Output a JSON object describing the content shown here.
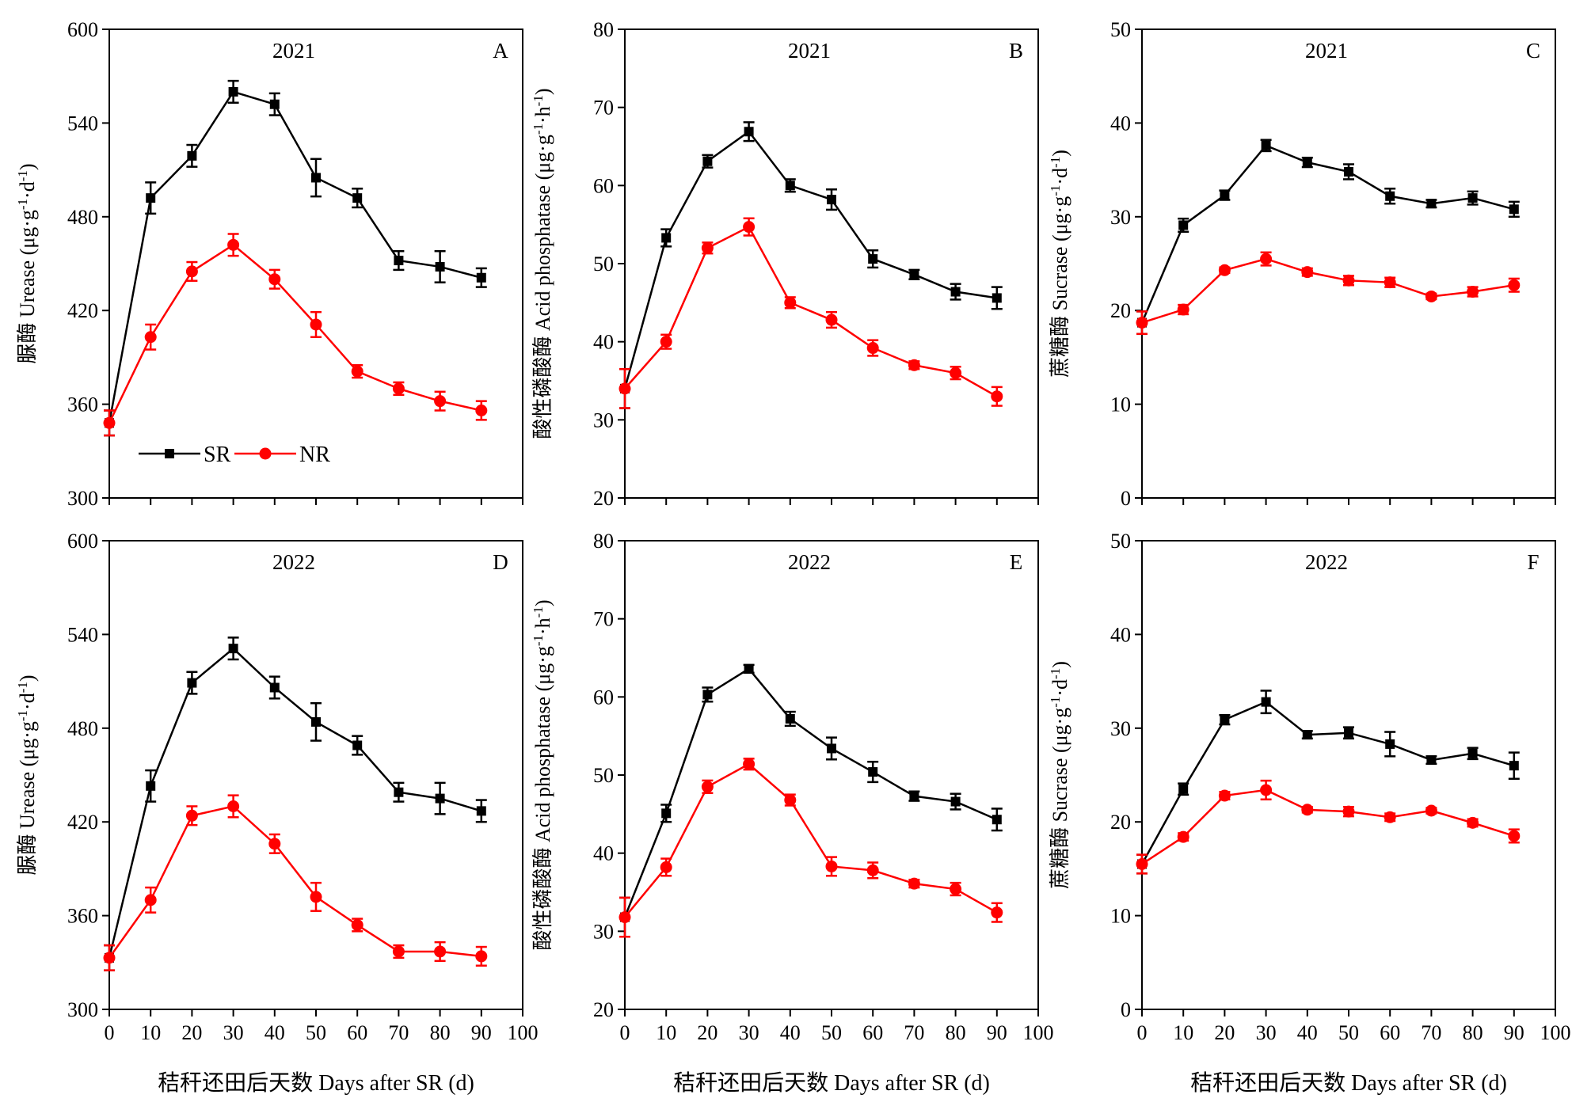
{
  "colors": {
    "SR": "#000000",
    "NR": "#ff0000"
  },
  "legend": {
    "SR": "SR",
    "NR": "NR"
  },
  "xlabel": "秸秆还田后天数 Days after SR (d)",
  "chart_data": [
    {
      "id": "A",
      "type": "line",
      "year": "2021",
      "letter": "A",
      "ylabel": "脲酶 Urease (μg·g⁻¹·d⁻¹)",
      "xlim": [
        0,
        100
      ],
      "xticks": [
        0,
        10,
        20,
        30,
        40,
        50,
        60,
        70,
        80,
        90,
        100
      ],
      "ylim": [
        300,
        600
      ],
      "yticks": [
        300,
        360,
        420,
        480,
        540,
        600
      ],
      "show_legend": true,
      "x": [
        0,
        10,
        20,
        30,
        40,
        50,
        60,
        70,
        80,
        90
      ],
      "series": [
        {
          "name": "SR",
          "values": [
            348,
            492,
            519,
            560,
            552,
            505,
            492,
            452,
            448,
            441
          ],
          "errors": [
            8,
            10,
            7,
            7,
            7,
            12,
            6,
            6,
            10,
            6
          ]
        },
        {
          "name": "NR",
          "values": [
            348,
            403,
            445,
            462,
            440,
            411,
            381,
            370,
            362,
            356
          ],
          "errors": [
            8,
            8,
            6,
            7,
            6,
            8,
            4,
            4,
            6,
            6
          ]
        }
      ]
    },
    {
      "id": "B",
      "type": "line",
      "year": "2021",
      "letter": "B",
      "ylabel": "酸性磷酸酶 Acid phosphatase (μg·g⁻¹·h⁻¹)",
      "xlim": [
        0,
        100
      ],
      "xticks": [
        0,
        10,
        20,
        30,
        40,
        50,
        60,
        70,
        80,
        90,
        100
      ],
      "ylim": [
        20,
        80
      ],
      "yticks": [
        20,
        30,
        40,
        50,
        60,
        70,
        80
      ],
      "show_legend": false,
      "x": [
        0,
        10,
        20,
        30,
        40,
        50,
        60,
        70,
        80,
        90
      ],
      "series": [
        {
          "name": "SR",
          "values": [
            34,
            53.3,
            63.1,
            66.9,
            60,
            58.2,
            50.6,
            48.6,
            46.4,
            45.6
          ],
          "errors": [
            2.5,
            1.1,
            0.8,
            1.2,
            0.8,
            1.3,
            1.1,
            0.6,
            1,
            1.4
          ]
        },
        {
          "name": "NR",
          "values": [
            34,
            40,
            52,
            54.7,
            45,
            42.8,
            39.2,
            37,
            36,
            33
          ],
          "errors": [
            2.5,
            0.9,
            0.7,
            1.1,
            0.7,
            1,
            1,
            0.5,
            0.8,
            1.2
          ]
        }
      ]
    },
    {
      "id": "C",
      "type": "line",
      "year": "2021",
      "letter": "C",
      "ylabel": "蔗糖酶 Sucrase (μg·g⁻¹·d⁻¹)",
      "xlim": [
        0,
        100
      ],
      "xticks": [
        0,
        10,
        20,
        30,
        40,
        50,
        60,
        70,
        80,
        90,
        100
      ],
      "ylim": [
        0,
        50
      ],
      "yticks": [
        0,
        10,
        20,
        30,
        40,
        50
      ],
      "show_legend": false,
      "x": [
        0,
        10,
        20,
        30,
        40,
        50,
        60,
        70,
        80,
        90
      ],
      "series": [
        {
          "name": "SR",
          "values": [
            18.7,
            29.1,
            32.3,
            37.6,
            35.8,
            34.8,
            32.2,
            31.4,
            32,
            30.8
          ],
          "errors": [
            1.2,
            0.7,
            0.5,
            0.6,
            0.5,
            0.8,
            0.8,
            0.4,
            0.7,
            0.8
          ]
        },
        {
          "name": "NR",
          "values": [
            18.7,
            20.1,
            24.3,
            25.5,
            24.1,
            23.2,
            23,
            21.5,
            22,
            22.7
          ],
          "errors": [
            1.2,
            0.5,
            0.3,
            0.7,
            0.4,
            0.5,
            0.5,
            0.3,
            0.5,
            0.7
          ]
        }
      ]
    },
    {
      "id": "D",
      "type": "line",
      "year": "2022",
      "letter": "D",
      "ylabel": "脲酶 Urease (μg·g⁻¹·d⁻¹)",
      "xlim": [
        0,
        100
      ],
      "xticks": [
        0,
        10,
        20,
        30,
        40,
        50,
        60,
        70,
        80,
        90,
        100
      ],
      "ylim": [
        300,
        600
      ],
      "yticks": [
        300,
        360,
        420,
        480,
        540,
        600
      ],
      "show_legend": false,
      "x": [
        0,
        10,
        20,
        30,
        40,
        50,
        60,
        70,
        80,
        90
      ],
      "series": [
        {
          "name": "SR",
          "values": [
            333,
            443,
            509,
            531,
            506,
            484,
            469,
            439,
            435,
            427
          ],
          "errors": [
            8,
            10,
            7,
            7,
            7,
            12,
            6,
            6,
            10,
            7
          ]
        },
        {
          "name": "NR",
          "values": [
            333,
            370,
            424,
            430,
            406,
            372,
            354,
            337,
            337,
            334
          ],
          "errors": [
            8,
            8,
            6,
            7,
            6,
            9,
            4,
            4,
            6,
            6
          ]
        }
      ]
    },
    {
      "id": "E",
      "type": "line",
      "year": "2022",
      "letter": "E",
      "ylabel": "酸性磷酸酶 Acid phosphatase (μg·g⁻¹·h⁻¹)",
      "xlim": [
        0,
        100
      ],
      "xticks": [
        0,
        10,
        20,
        30,
        40,
        50,
        60,
        70,
        80,
        90,
        100
      ],
      "ylim": [
        20,
        80
      ],
      "yticks": [
        20,
        30,
        40,
        50,
        60,
        70,
        80
      ],
      "show_legend": false,
      "x": [
        0,
        10,
        20,
        30,
        40,
        50,
        60,
        70,
        80,
        90
      ],
      "series": [
        {
          "name": "SR",
          "values": [
            31.8,
            45.1,
            60.3,
            63.6,
            57.2,
            53.4,
            50.4,
            47.3,
            46.6,
            44.3
          ],
          "errors": [
            2.5,
            1.1,
            0.9,
            0.5,
            0.9,
            1.4,
            1.3,
            0.6,
            1,
            1.4
          ]
        },
        {
          "name": "NR",
          "values": [
            31.8,
            38.2,
            48.5,
            51.4,
            46.8,
            38.3,
            37.8,
            36.1,
            35.4,
            32.4
          ],
          "errors": [
            2.5,
            1.1,
            0.8,
            0.7,
            0.7,
            1.2,
            1,
            0.5,
            0.8,
            1.2
          ]
        }
      ]
    },
    {
      "id": "F",
      "type": "line",
      "year": "2022",
      "letter": "F",
      "ylabel": "蔗糖酶 Sucrase (μg·g⁻¹·d⁻¹)",
      "xlim": [
        0,
        100
      ],
      "xticks": [
        0,
        10,
        20,
        30,
        40,
        50,
        60,
        70,
        80,
        90,
        100
      ],
      "ylim": [
        0,
        50
      ],
      "yticks": [
        0,
        10,
        20,
        30,
        40,
        50
      ],
      "show_legend": false,
      "x": [
        0,
        10,
        20,
        30,
        40,
        50,
        60,
        70,
        80,
        90
      ],
      "series": [
        {
          "name": "SR",
          "values": [
            15.5,
            23.5,
            30.9,
            32.8,
            29.3,
            29.5,
            28.3,
            26.6,
            27.3,
            26
          ],
          "errors": [
            1,
            0.6,
            0.5,
            1.2,
            0.4,
            0.6,
            1.3,
            0.4,
            0.6,
            1.4
          ]
        },
        {
          "name": "NR",
          "values": [
            15.5,
            18.4,
            22.8,
            23.4,
            21.3,
            21.1,
            20.5,
            21.2,
            19.9,
            18.5
          ],
          "errors": [
            1,
            0.4,
            0.4,
            1,
            0.3,
            0.5,
            0.4,
            0.3,
            0.4,
            0.7
          ]
        }
      ]
    }
  ]
}
